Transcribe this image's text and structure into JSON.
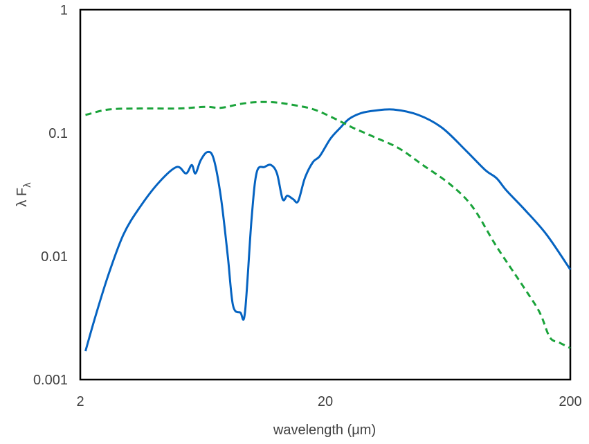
{
  "chart_data": {
    "type": "line",
    "xlabel": "wavelength (μm)",
    "ylabel": "λ F",
    "ylabel_subscript": "λ",
    "xscale": "log",
    "yscale": "log",
    "xlim": [
      2,
      200
    ],
    "ylim": [
      0.001,
      1
    ],
    "xticks": [
      {
        "value": 2,
        "label": "2"
      },
      {
        "value": 20,
        "label": "20"
      },
      {
        "value": 200,
        "label": "200"
      }
    ],
    "yticks": [
      {
        "value": 0.001,
        "label": "0.001"
      },
      {
        "value": 0.01,
        "label": "0.01"
      },
      {
        "value": 0.1,
        "label": "0.1"
      },
      {
        "value": 1,
        "label": "1"
      }
    ],
    "grid": false,
    "legend": "none",
    "series": [
      {
        "color": "#0563C1",
        "style": "solid",
        "points": [
          [
            2.1,
            0.0017
          ],
          [
            2.3,
            0.0032
          ],
          [
            2.6,
            0.007
          ],
          [
            3.0,
            0.015
          ],
          [
            3.5,
            0.025
          ],
          [
            4.2,
            0.04
          ],
          [
            4.95,
            0.053
          ],
          [
            5.4,
            0.047
          ],
          [
            5.7,
            0.055
          ],
          [
            5.9,
            0.047
          ],
          [
            6.2,
            0.06
          ],
          [
            6.6,
            0.07
          ],
          [
            7.0,
            0.062
          ],
          [
            7.5,
            0.03
          ],
          [
            8.0,
            0.01
          ],
          [
            8.4,
            0.004
          ],
          [
            9.0,
            0.0035
          ],
          [
            9.4,
            0.0035
          ],
          [
            10.0,
            0.02
          ],
          [
            10.5,
            0.048
          ],
          [
            11.3,
            0.053
          ],
          [
            12.0,
            0.055
          ],
          [
            12.7,
            0.047
          ],
          [
            13.4,
            0.029
          ],
          [
            14.0,
            0.031
          ],
          [
            14.8,
            0.029
          ],
          [
            15.5,
            0.028
          ],
          [
            16.5,
            0.043
          ],
          [
            17.8,
            0.058
          ],
          [
            19.0,
            0.065
          ],
          [
            21.0,
            0.09
          ],
          [
            23.0,
            0.11
          ],
          [
            25.0,
            0.13
          ],
          [
            28.0,
            0.145
          ],
          [
            32.0,
            0.152
          ],
          [
            38.0,
            0.155
          ],
          [
            48.0,
            0.14
          ],
          [
            60.0,
            0.11
          ],
          [
            75.0,
            0.072
          ],
          [
            90.0,
            0.05
          ],
          [
            100.0,
            0.043
          ],
          [
            110.0,
            0.034
          ],
          [
            130.0,
            0.024
          ],
          [
            160.0,
            0.015
          ],
          [
            200.0,
            0.0078
          ]
        ]
      },
      {
        "color": "#1AA33A",
        "style": "dashed",
        "points": [
          [
            2.1,
            0.14
          ],
          [
            2.6,
            0.155
          ],
          [
            3.5,
            0.158
          ],
          [
            5.0,
            0.158
          ],
          [
            6.5,
            0.163
          ],
          [
            7.5,
            0.16
          ],
          [
            9.0,
            0.172
          ],
          [
            10.5,
            0.178
          ],
          [
            12.5,
            0.177
          ],
          [
            15.0,
            0.168
          ],
          [
            18.0,
            0.155
          ],
          [
            22.0,
            0.13
          ],
          [
            26.0,
            0.11
          ],
          [
            32.0,
            0.092
          ],
          [
            40.0,
            0.075
          ],
          [
            50.0,
            0.055
          ],
          [
            65.0,
            0.038
          ],
          [
            80.0,
            0.025
          ],
          [
            100.0,
            0.012
          ],
          [
            130.0,
            0.0055
          ],
          [
            150.0,
            0.0035
          ],
          [
            165.0,
            0.0022
          ],
          [
            180.0,
            0.002
          ],
          [
            200.0,
            0.0018
          ]
        ]
      }
    ]
  }
}
